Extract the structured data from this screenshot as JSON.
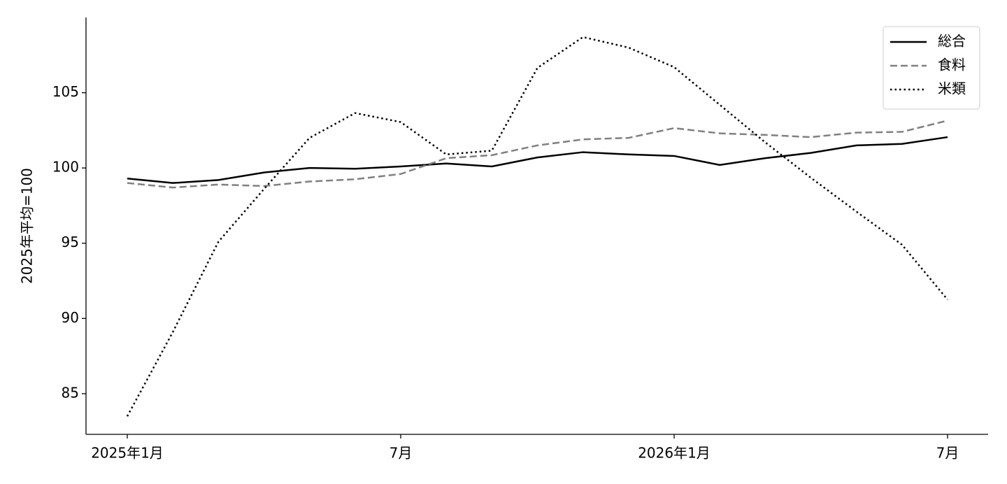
{
  "chart_data": {
    "type": "line",
    "y_label": "2025年平均=100",
    "categories": [
      "2025年1月",
      null,
      null,
      null,
      null,
      null,
      "7月",
      null,
      null,
      null,
      null,
      null,
      "2026年1月",
      null,
      null,
      null,
      null,
      null,
      "7月"
    ],
    "series": [
      {
        "name": "総合",
        "color": "#000000",
        "dash": "solid",
        "values": [
          99.3,
          99.0,
          99.2,
          99.7,
          100.0,
          99.95,
          100.1,
          100.3,
          100.1,
          100.7,
          101.05,
          100.9,
          100.8,
          100.2,
          100.65,
          101.0,
          101.5,
          101.6,
          102.05
        ]
      },
      {
        "name": "食料",
        "color": "#808080",
        "dash": "dashed",
        "values": [
          99.0,
          98.7,
          98.9,
          98.8,
          99.1,
          99.25,
          99.6,
          100.65,
          100.85,
          101.5,
          101.9,
          102.0,
          102.65,
          102.3,
          102.2,
          102.05,
          102.35,
          102.4,
          103.15
        ]
      },
      {
        "name": "米類",
        "color": "#000000",
        "dash": "dotted",
        "values": [
          83.5,
          89.1,
          95.1,
          98.6,
          102.0,
          103.65,
          103.05,
          100.9,
          101.15,
          106.65,
          108.7,
          108.0,
          106.7,
          104.2,
          101.7,
          99.35,
          97.1,
          94.9,
          91.25
        ]
      }
    ],
    "ylim": [
      82.3,
      110.0
    ],
    "yticks": [
      85,
      90,
      95,
      100,
      105
    ],
    "legend": "upper right",
    "grid": false
  }
}
